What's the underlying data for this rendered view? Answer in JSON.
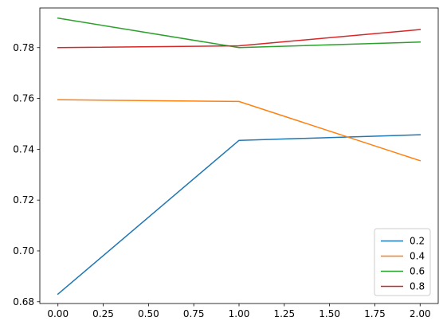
{
  "chart_data": {
    "type": "line",
    "title": "",
    "xlabel": "",
    "ylabel": "",
    "x": [
      0,
      1,
      2
    ],
    "xlim": [
      -0.1,
      2.1
    ],
    "ylim": [
      0.6793,
      0.7956
    ],
    "x_ticks": [
      0,
      0.25,
      0.5,
      0.75,
      1,
      1.25,
      1.5,
      1.75,
      2
    ],
    "x_tick_labels": [
      "0.00",
      "0.25",
      "0.50",
      "0.75",
      "1.00",
      "1.25",
      "1.50",
      "1.75",
      "2.00"
    ],
    "y_ticks": [
      0.68,
      0.7,
      0.72,
      0.74,
      0.76,
      0.78
    ],
    "y_tick_labels": [
      "0.68",
      "0.70",
      "0.72",
      "0.74",
      "0.76",
      "0.78"
    ],
    "grid": false,
    "legend_position": "lower-right",
    "series": [
      {
        "name": "0.2",
        "color": "#1f77b4",
        "values": [
          0.683,
          0.7435,
          0.7457
        ]
      },
      {
        "name": "0.4",
        "color": "#ff7f0e",
        "values": [
          0.7595,
          0.7588,
          0.7355
        ]
      },
      {
        "name": "0.6",
        "color": "#2ca02c",
        "values": [
          0.7916,
          0.78,
          0.7822
        ]
      },
      {
        "name": "0.8",
        "color": "#d62728",
        "values": [
          0.78,
          0.7807,
          0.7871
        ]
      }
    ]
  }
}
